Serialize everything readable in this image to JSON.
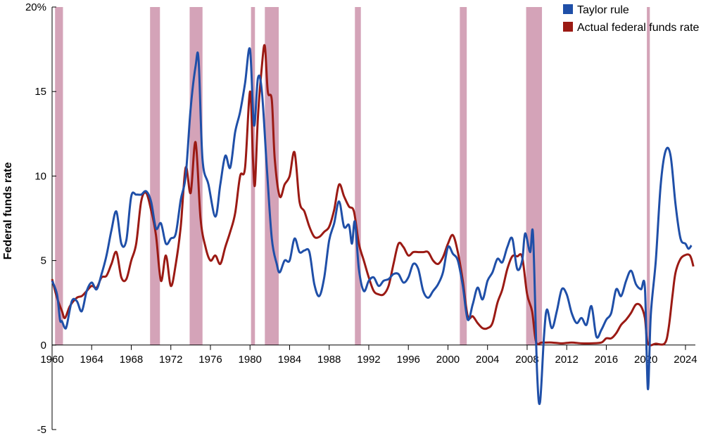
{
  "chart_data": {
    "type": "line",
    "title": "",
    "xlabel": "",
    "ylabel": "Federal funds rate",
    "xlim": [
      1960,
      2025
    ],
    "ylim": [
      -5,
      20
    ],
    "x_ticks": [
      1960,
      1964,
      1968,
      1972,
      1976,
      1980,
      1984,
      1988,
      1992,
      1996,
      2000,
      2004,
      2008,
      2012,
      2016,
      2020,
      2024
    ],
    "x_tick_labels": [
      "1960",
      "1964",
      "1968",
      "1972",
      "1976",
      "1980",
      "1984",
      "1988",
      "1992",
      "1996",
      "2000",
      "2004",
      "2008",
      "2012",
      "2016",
      "2020",
      "2024"
    ],
    "y_ticks": [
      -5,
      0,
      5,
      10,
      15,
      20
    ],
    "y_tick_labels": [
      "-5",
      "0",
      "5",
      "10",
      "15",
      "20%"
    ],
    "grid": false,
    "legend_position": "top-right",
    "recessions": [
      [
        1960.3,
        1961.1
      ],
      [
        1969.9,
        1970.9
      ],
      [
        1973.9,
        1975.2
      ],
      [
        1980.1,
        1980.5
      ],
      [
        1981.5,
        1982.9
      ],
      [
        1990.6,
        1991.2
      ],
      [
        2001.2,
        2001.9
      ],
      [
        2007.9,
        2009.5
      ],
      [
        2020.1,
        2020.4
      ]
    ],
    "series": [
      {
        "name": "Taylor rule",
        "color": "#1f4fa8",
        "points": [
          [
            1960.0,
            3.8
          ],
          [
            1960.5,
            3.0
          ],
          [
            1960.8,
            1.5
          ],
          [
            1961.0,
            1.4
          ],
          [
            1961.3,
            1.0
          ],
          [
            1961.5,
            1.2
          ],
          [
            1962.0,
            2.6
          ],
          [
            1962.5,
            2.6
          ],
          [
            1963.0,
            2.0
          ],
          [
            1963.5,
            3.2
          ],
          [
            1964.0,
            3.7
          ],
          [
            1964.5,
            3.3
          ],
          [
            1965.0,
            4.2
          ],
          [
            1965.5,
            5.3
          ],
          [
            1966.0,
            6.8
          ],
          [
            1966.5,
            7.9
          ],
          [
            1967.0,
            6.0
          ],
          [
            1967.5,
            6.2
          ],
          [
            1968.0,
            8.8
          ],
          [
            1968.5,
            8.9
          ],
          [
            1969.0,
            8.9
          ],
          [
            1969.5,
            9.1
          ],
          [
            1970.0,
            8.5
          ],
          [
            1970.5,
            6.9
          ],
          [
            1971.0,
            7.2
          ],
          [
            1971.5,
            6.0
          ],
          [
            1972.0,
            6.3
          ],
          [
            1972.5,
            6.6
          ],
          [
            1973.0,
            8.6
          ],
          [
            1973.5,
            10.0
          ],
          [
            1974.0,
            14.0
          ],
          [
            1974.5,
            16.5
          ],
          [
            1974.8,
            16.9
          ],
          [
            1975.2,
            11.0
          ],
          [
            1975.8,
            9.5
          ],
          [
            1976.5,
            7.6
          ],
          [
            1977.0,
            9.5
          ],
          [
            1977.5,
            11.2
          ],
          [
            1978.0,
            10.5
          ],
          [
            1978.5,
            12.6
          ],
          [
            1979.0,
            13.8
          ],
          [
            1979.5,
            15.5
          ],
          [
            1980.0,
            17.5
          ],
          [
            1980.4,
            13.0
          ],
          [
            1980.8,
            15.8
          ],
          [
            1981.2,
            15.0
          ],
          [
            1981.7,
            10.5
          ],
          [
            1982.2,
            6.3
          ],
          [
            1982.7,
            4.8
          ],
          [
            1983.0,
            4.3
          ],
          [
            1983.5,
            5.0
          ],
          [
            1984.0,
            5.0
          ],
          [
            1984.5,
            6.3
          ],
          [
            1985.0,
            5.5
          ],
          [
            1985.5,
            5.6
          ],
          [
            1986.0,
            5.5
          ],
          [
            1986.5,
            3.6
          ],
          [
            1987.0,
            2.9
          ],
          [
            1987.5,
            4.0
          ],
          [
            1988.0,
            6.2
          ],
          [
            1988.5,
            7.2
          ],
          [
            1989.0,
            8.5
          ],
          [
            1989.5,
            7.0
          ],
          [
            1990.0,
            7.1
          ],
          [
            1990.3,
            6.0
          ],
          [
            1990.6,
            7.3
          ],
          [
            1991.0,
            4.5
          ],
          [
            1991.5,
            3.2
          ],
          [
            1992.0,
            3.8
          ],
          [
            1992.5,
            4.0
          ],
          [
            1993.0,
            3.5
          ],
          [
            1993.5,
            3.8
          ],
          [
            1994.0,
            3.9
          ],
          [
            1994.5,
            4.2
          ],
          [
            1995.0,
            4.2
          ],
          [
            1995.5,
            3.7
          ],
          [
            1996.0,
            4.0
          ],
          [
            1996.5,
            4.8
          ],
          [
            1997.0,
            4.5
          ],
          [
            1997.5,
            3.2
          ],
          [
            1998.0,
            2.8
          ],
          [
            1998.5,
            3.2
          ],
          [
            1999.0,
            3.6
          ],
          [
            1999.5,
            4.3
          ],
          [
            2000.0,
            5.8
          ],
          [
            2000.5,
            5.4
          ],
          [
            2001.0,
            5.0
          ],
          [
            2001.5,
            3.5
          ],
          [
            2002.0,
            1.5
          ],
          [
            2002.5,
            2.4
          ],
          [
            2003.0,
            3.4
          ],
          [
            2003.5,
            2.7
          ],
          [
            2004.0,
            3.8
          ],
          [
            2004.5,
            4.3
          ],
          [
            2005.0,
            5.1
          ],
          [
            2005.5,
            4.9
          ],
          [
            2006.0,
            5.8
          ],
          [
            2006.5,
            6.3
          ],
          [
            2007.0,
            4.5
          ],
          [
            2007.5,
            5.0
          ],
          [
            2007.8,
            6.6
          ],
          [
            2008.3,
            5.5
          ],
          [
            2008.6,
            6.5
          ],
          [
            2009.0,
            -1.5
          ],
          [
            2009.3,
            -3.4
          ],
          [
            2009.7,
            0.5
          ],
          [
            2010.0,
            2.1
          ],
          [
            2010.5,
            1.0
          ],
          [
            2011.0,
            2.0
          ],
          [
            2011.5,
            3.3
          ],
          [
            2012.0,
            3.0
          ],
          [
            2012.5,
            1.9
          ],
          [
            2013.0,
            1.3
          ],
          [
            2013.5,
            1.6
          ],
          [
            2014.0,
            1.2
          ],
          [
            2014.5,
            2.3
          ],
          [
            2015.0,
            0.5
          ],
          [
            2015.5,
            0.9
          ],
          [
            2016.0,
            1.5
          ],
          [
            2016.5,
            1.9
          ],
          [
            2017.0,
            3.3
          ],
          [
            2017.5,
            2.9
          ],
          [
            2018.0,
            3.8
          ],
          [
            2018.5,
            4.4
          ],
          [
            2019.0,
            3.6
          ],
          [
            2019.5,
            3.3
          ],
          [
            2019.9,
            3.4
          ],
          [
            2020.2,
            -2.6
          ],
          [
            2020.5,
            1.8
          ],
          [
            2021.0,
            5.0
          ],
          [
            2021.5,
            9.5
          ],
          [
            2022.0,
            11.5
          ],
          [
            2022.5,
            11.2
          ],
          [
            2023.0,
            8.3
          ],
          [
            2023.5,
            6.3
          ],
          [
            2024.0,
            6.0
          ],
          [
            2024.3,
            5.7
          ],
          [
            2024.6,
            5.9
          ]
        ]
      },
      {
        "name": "Actual federal funds rate",
        "color": "#9b1a14",
        "points": [
          [
            1960.0,
            3.9
          ],
          [
            1960.5,
            2.8
          ],
          [
            1961.0,
            2.0
          ],
          [
            1961.3,
            1.6
          ],
          [
            1961.8,
            2.3
          ],
          [
            1962.5,
            2.8
          ],
          [
            1963.0,
            2.9
          ],
          [
            1963.5,
            3.2
          ],
          [
            1964.0,
            3.5
          ],
          [
            1964.5,
            3.4
          ],
          [
            1965.0,
            4.0
          ],
          [
            1965.5,
            4.1
          ],
          [
            1966.0,
            4.8
          ],
          [
            1966.5,
            5.5
          ],
          [
            1967.0,
            4.0
          ],
          [
            1967.5,
            3.9
          ],
          [
            1968.0,
            5.0
          ],
          [
            1968.5,
            6.0
          ],
          [
            1969.0,
            8.5
          ],
          [
            1969.5,
            9.0
          ],
          [
            1970.0,
            8.0
          ],
          [
            1970.5,
            6.5
          ],
          [
            1971.0,
            3.8
          ],
          [
            1971.5,
            5.3
          ],
          [
            1972.0,
            3.5
          ],
          [
            1972.5,
            4.8
          ],
          [
            1973.0,
            7.0
          ],
          [
            1973.5,
            10.5
          ],
          [
            1974.0,
            9.0
          ],
          [
            1974.5,
            12.0
          ],
          [
            1975.0,
            7.5
          ],
          [
            1975.5,
            5.8
          ],
          [
            1976.0,
            5.0
          ],
          [
            1976.5,
            5.3
          ],
          [
            1977.0,
            4.8
          ],
          [
            1977.5,
            5.8
          ],
          [
            1978.0,
            6.7
          ],
          [
            1978.5,
            7.8
          ],
          [
            1979.0,
            10.0
          ],
          [
            1979.5,
            10.5
          ],
          [
            1980.0,
            15.0
          ],
          [
            1980.3,
            11.0
          ],
          [
            1980.5,
            9.5
          ],
          [
            1980.8,
            13.5
          ],
          [
            1981.2,
            16.5
          ],
          [
            1981.5,
            17.7
          ],
          [
            1981.8,
            15.0
          ],
          [
            1982.2,
            14.5
          ],
          [
            1982.5,
            11.0
          ],
          [
            1983.0,
            8.8
          ],
          [
            1983.5,
            9.5
          ],
          [
            1984.0,
            10.0
          ],
          [
            1984.5,
            11.4
          ],
          [
            1985.0,
            8.5
          ],
          [
            1985.5,
            7.9
          ],
          [
            1986.0,
            7.0
          ],
          [
            1986.5,
            6.4
          ],
          [
            1987.0,
            6.4
          ],
          [
            1987.5,
            6.7
          ],
          [
            1988.0,
            7.0
          ],
          [
            1988.5,
            8.0
          ],
          [
            1989.0,
            9.5
          ],
          [
            1989.5,
            8.8
          ],
          [
            1990.0,
            8.2
          ],
          [
            1990.5,
            7.9
          ],
          [
            1991.0,
            6.0
          ],
          [
            1991.5,
            5.0
          ],
          [
            1992.0,
            4.0
          ],
          [
            1992.5,
            3.2
          ],
          [
            1993.0,
            3.0
          ],
          [
            1993.5,
            3.0
          ],
          [
            1994.0,
            3.5
          ],
          [
            1994.5,
            4.8
          ],
          [
            1995.0,
            6.0
          ],
          [
            1995.5,
            5.8
          ],
          [
            1996.0,
            5.3
          ],
          [
            1996.5,
            5.5
          ],
          [
            1997.0,
            5.5
          ],
          [
            1997.5,
            5.5
          ],
          [
            1998.0,
            5.5
          ],
          [
            1998.5,
            5.0
          ],
          [
            1999.0,
            4.8
          ],
          [
            1999.5,
            5.2
          ],
          [
            2000.0,
            6.0
          ],
          [
            2000.5,
            6.5
          ],
          [
            2001.0,
            5.5
          ],
          [
            2001.5,
            3.8
          ],
          [
            2002.0,
            1.7
          ],
          [
            2002.5,
            1.7
          ],
          [
            2003.0,
            1.3
          ],
          [
            2003.5,
            1.0
          ],
          [
            2004.0,
            1.0
          ],
          [
            2004.5,
            1.3
          ],
          [
            2005.0,
            2.5
          ],
          [
            2005.5,
            3.3
          ],
          [
            2006.0,
            4.5
          ],
          [
            2006.5,
            5.25
          ],
          [
            2007.0,
            5.25
          ],
          [
            2007.5,
            5.2
          ],
          [
            2008.0,
            3.0
          ],
          [
            2008.5,
            2.0
          ],
          [
            2008.9,
            0.2
          ],
          [
            2009.5,
            0.15
          ],
          [
            2010.5,
            0.15
          ],
          [
            2011.5,
            0.1
          ],
          [
            2012.5,
            0.15
          ],
          [
            2013.5,
            0.1
          ],
          [
            2014.5,
            0.1
          ],
          [
            2015.5,
            0.15
          ],
          [
            2016.0,
            0.4
          ],
          [
            2016.5,
            0.4
          ],
          [
            2017.0,
            0.7
          ],
          [
            2017.5,
            1.2
          ],
          [
            2018.0,
            1.5
          ],
          [
            2018.5,
            1.9
          ],
          [
            2019.0,
            2.4
          ],
          [
            2019.5,
            2.3
          ],
          [
            2019.9,
            1.6
          ],
          [
            2020.2,
            0.1
          ],
          [
            2021.0,
            0.08
          ],
          [
            2021.9,
            0.1
          ],
          [
            2022.3,
            1.0
          ],
          [
            2022.7,
            3.0
          ],
          [
            2023.0,
            4.3
          ],
          [
            2023.5,
            5.1
          ],
          [
            2024.0,
            5.33
          ],
          [
            2024.4,
            5.33
          ],
          [
            2024.6,
            5.1
          ],
          [
            2024.8,
            4.65
          ]
        ]
      }
    ]
  }
}
